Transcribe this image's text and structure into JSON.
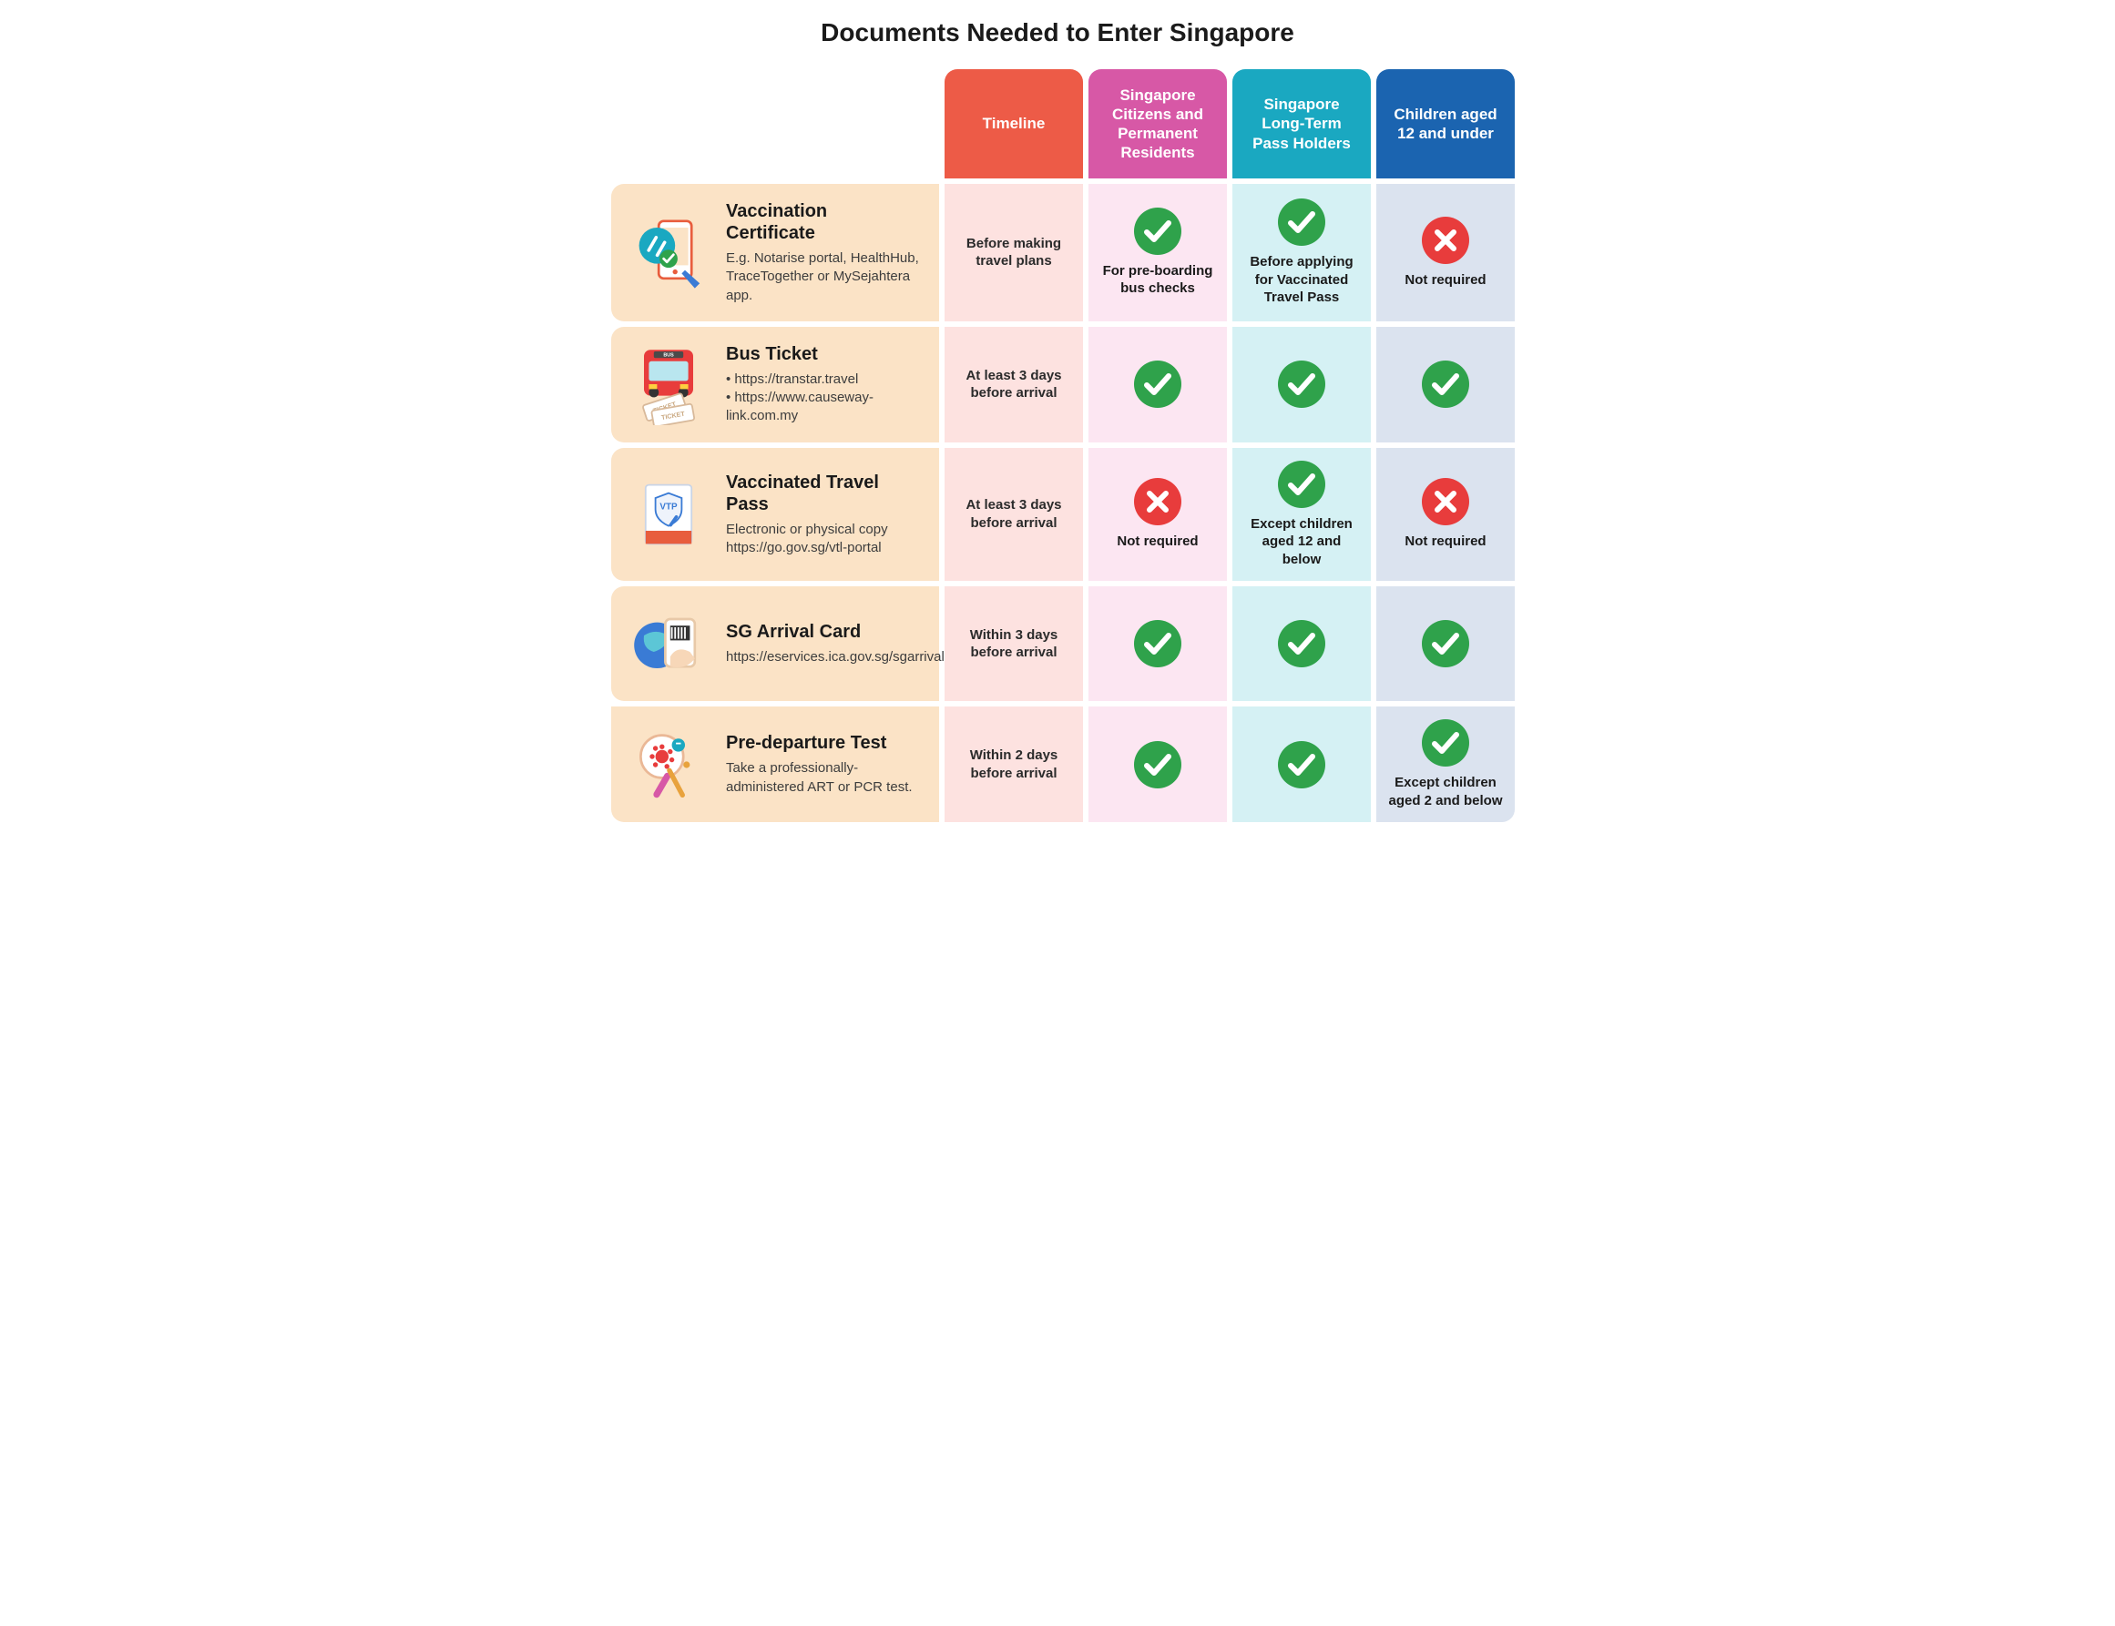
{
  "title": "Documents Needed to Enter Singapore",
  "colors": {
    "header_timeline": "#ed5b47",
    "header_citizens": "#d758a6",
    "header_longterm": "#1aa8c1",
    "header_children": "#1b64b0",
    "row_label_bg": "#fbe3c6",
    "col_timeline_bg": "#fde2e0",
    "col_citizens_bg": "#fce6f2",
    "col_longterm_bg": "#d5f1f4",
    "col_children_bg": "#dbe3ef",
    "check_bg": "#2fa24b",
    "cross_bg": "#e83c3c",
    "badge_icon_color": "#ffffff",
    "text_color": "#1a1a1a"
  },
  "columns": {
    "timeline": "Timeline",
    "citizens": "Singapore Citizens and Permanent Residents",
    "longterm": "Singapore Long-Term Pass Holders",
    "children": "Children aged 12 and under"
  },
  "rows": [
    {
      "id": "vaccination-certificate",
      "name": "Vaccination Certificate",
      "desc": "E.g. Notarise portal, HealthHub, TraceTogether or MySejahtera app.",
      "timeline": "Before making travel plans",
      "cells": {
        "citizens": {
          "status": "check",
          "note": "For pre-boarding bus checks"
        },
        "longterm": {
          "status": "check",
          "note": "Before applying for Vaccinated Travel Pass"
        },
        "children": {
          "status": "cross",
          "note": "Not required"
        }
      }
    },
    {
      "id": "bus-ticket",
      "name": "Bus Ticket",
      "desc": "• https://transtar.travel\n• https://www.causeway-link.com.my",
      "timeline": "At least 3 days before arrival",
      "cells": {
        "citizens": {
          "status": "check",
          "note": ""
        },
        "longterm": {
          "status": "check",
          "note": ""
        },
        "children": {
          "status": "check",
          "note": ""
        }
      }
    },
    {
      "id": "vaccinated-travel-pass",
      "name": "Vaccinated Travel Pass",
      "desc": "Electronic or physical copy\n\nhttps://go.gov.sg/vtl-portal",
      "timeline": "At least 3 days before arrival",
      "cells": {
        "citizens": {
          "status": "cross",
          "note": "Not required"
        },
        "longterm": {
          "status": "check",
          "note": "Except children aged 12 and below"
        },
        "children": {
          "status": "cross",
          "note": "Not required"
        }
      }
    },
    {
      "id": "sg-arrival-card",
      "name": "SG Arrival Card",
      "desc": "https://eservices.ica.gov.sg/sgarrivalcard",
      "timeline": "Within 3 days before arrival",
      "cells": {
        "citizens": {
          "status": "check",
          "note": ""
        },
        "longterm": {
          "status": "check",
          "note": ""
        },
        "children": {
          "status": "check",
          "note": ""
        }
      }
    },
    {
      "id": "pre-departure-test",
      "name": "Pre-departure Test",
      "desc": "Take a professionally-administered ART or PCR test.",
      "timeline": "Within 2 days before arrival",
      "cells": {
        "citizens": {
          "status": "check",
          "note": ""
        },
        "longterm": {
          "status": "check",
          "note": ""
        },
        "children": {
          "status": "check",
          "note": "Except children aged 2 and below"
        }
      }
    }
  ],
  "icons": {
    "vaccination-certificate": "vaccine-app",
    "bus-ticket": "bus-ticket",
    "vaccinated-travel-pass": "vtp-card",
    "sg-arrival-card": "globe-card",
    "pre-departure-test": "swab-test"
  }
}
